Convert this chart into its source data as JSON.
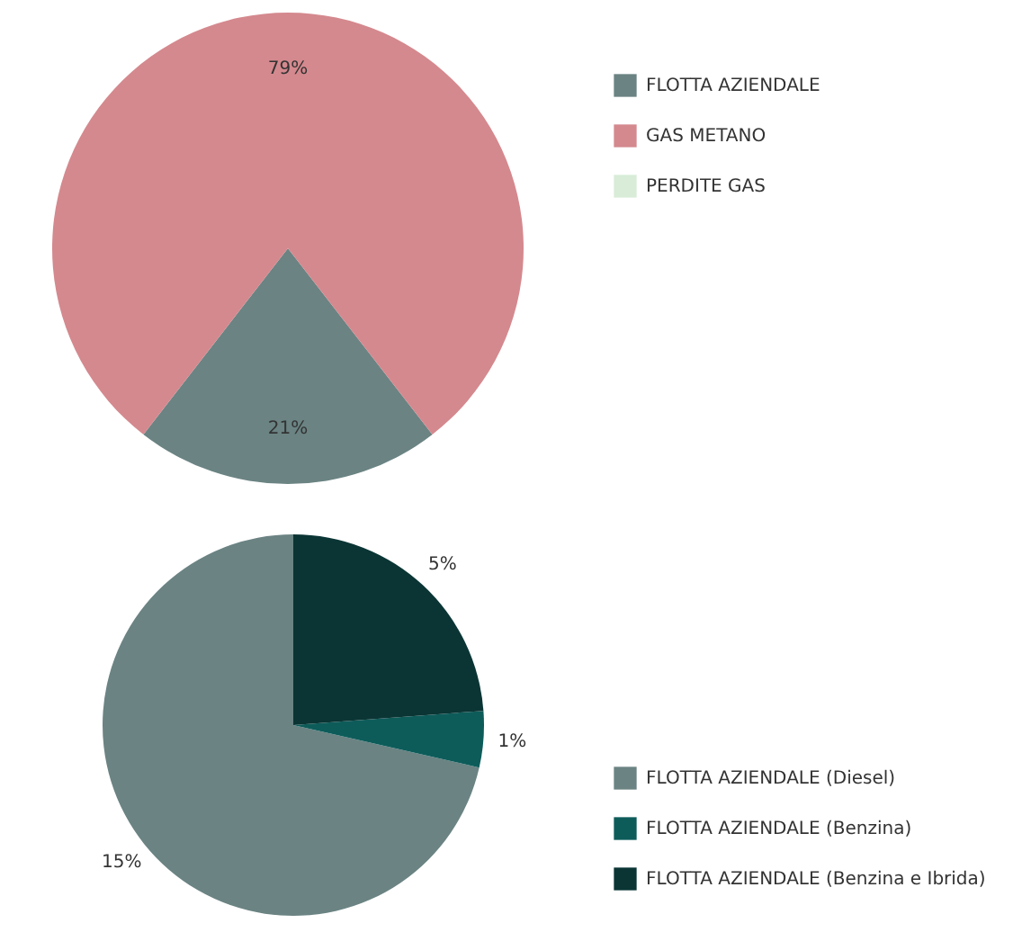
{
  "chart_data": [
    {
      "type": "pie",
      "categories": [
        "FLOTTA AZIENDALE",
        "GAS METANO",
        "PERDITE GAS"
      ],
      "values": [
        21,
        79,
        0
      ],
      "colors": [
        "#6b8383",
        "#d4898e",
        "#d8ecd8"
      ],
      "value_labels": [
        "21%",
        "79%",
        null
      ],
      "legend": "top right"
    },
    {
      "type": "pie",
      "categories": [
        "FLOTTA AZIENDALE (Diesel)",
        "FLOTTA AZIENDALE (Benzina)",
        "FLOTTA AZIENDALE (Benzina e Ibrida)"
      ],
      "values": [
        15,
        1,
        5
      ],
      "colors": [
        "#6b8383",
        "#0d5c5a",
        "#0b3535"
      ],
      "value_labels": [
        "15%",
        "1%",
        "5%"
      ],
      "legend": "bottom right"
    }
  ]
}
